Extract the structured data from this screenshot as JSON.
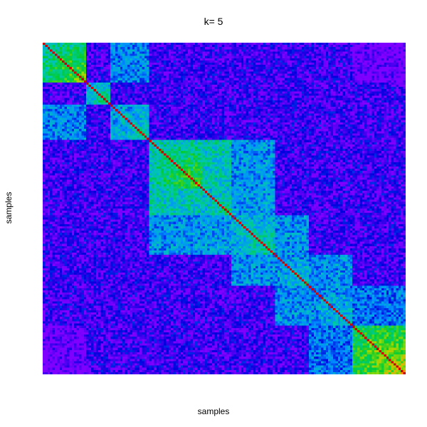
{
  "chart_data": {
    "type": "heatmap",
    "title": "k= 5",
    "xlabel": "samples",
    "ylabel": "samples",
    "colormap": [
      "#7f00ff",
      "#0000dd",
      "#0090ff",
      "#00c8b0",
      "#00cc33",
      "#a0d800",
      "#ffa500",
      "#cc0000"
    ],
    "value_range": [
      0,
      1
    ],
    "n_samples": 150,
    "diagonal_value": 1.0,
    "background_value": 0.08,
    "blocks": [
      {
        "samples": [
          0,
          18
        ],
        "within": 0.62
      },
      {
        "samples": [
          18,
          28
        ],
        "within": 0.48
      },
      {
        "samples": [
          28,
          44
        ],
        "within": 0.42
      },
      {
        "samples": [
          44,
          66
        ],
        "within": 0.58
      },
      {
        "samples": [
          66,
          78
        ],
        "within": 0.5
      },
      {
        "samples": [
          78,
          96
        ],
        "within": 0.45
      },
      {
        "samples": [
          96,
          110
        ],
        "within": 0.4
      },
      {
        "samples": [
          110,
          128
        ],
        "within": 0.38
      },
      {
        "samples": [
          128,
          150
        ],
        "within": 0.72
      }
    ],
    "block_links": [
      {
        "a": 0,
        "b": 2,
        "value": 0.28
      },
      {
        "a": 3,
        "b": 4,
        "value": 0.42
      },
      {
        "a": 3,
        "b": 5,
        "value": 0.3
      },
      {
        "a": 4,
        "b": 5,
        "value": 0.32
      },
      {
        "a": 5,
        "b": 6,
        "value": 0.3
      },
      {
        "a": 6,
        "b": 7,
        "value": 0.3
      },
      {
        "a": 7,
        "b": 8,
        "value": 0.26
      },
      {
        "a": 0,
        "b": 8,
        "value": 0.0
      }
    ]
  }
}
